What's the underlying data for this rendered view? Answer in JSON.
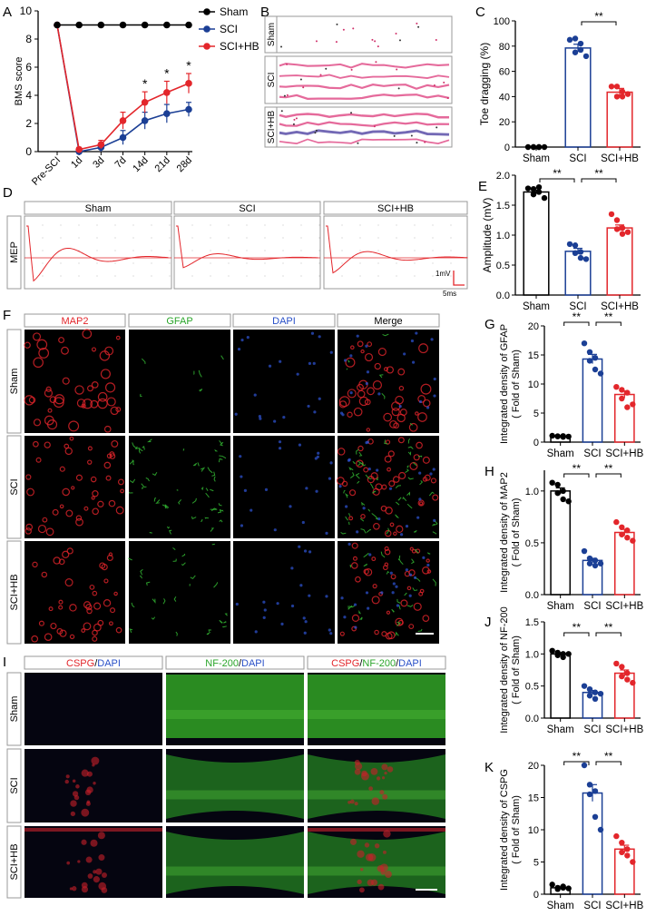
{
  "colors": {
    "sham": "#000000",
    "sci": "#1b3f95",
    "scihb": "#e3262b",
    "green": "#3cc93c",
    "blue": "#3a62d8"
  },
  "groups": [
    "Sham",
    "SCI",
    "SCI+HB"
  ],
  "panels": {
    "A": {
      "letter": "A"
    },
    "B": {
      "letter": "B"
    },
    "C": {
      "letter": "C"
    },
    "D": {
      "letter": "D"
    },
    "E": {
      "letter": "E"
    },
    "F": {
      "letter": "F"
    },
    "G": {
      "letter": "G"
    },
    "H": {
      "letter": "H"
    },
    "I": {
      "letter": "I"
    },
    "J": {
      "letter": "J"
    },
    "K": {
      "letter": "K"
    }
  },
  "panel_B": {
    "rows": [
      "Sham",
      "SCI",
      "SCI+HB"
    ]
  },
  "panel_D": {
    "side_label": "MEP",
    "columns": [
      "Sham",
      "SCI",
      "SCI+HB"
    ],
    "scale_mv": "1mV",
    "scale_ms": "5ms"
  },
  "panel_F": {
    "columns": [
      "MAP2",
      "GFAP",
      "DAPI",
      "Merge"
    ],
    "rows": [
      "Sham",
      "SCI",
      "SCI+HB"
    ]
  },
  "panel_I": {
    "columns": [
      [
        {
          "t": "CSPG",
          "c": "red"
        },
        {
          "t": "/",
          "c": "black"
        },
        {
          "t": "DAPI",
          "c": "blue"
        }
      ],
      [
        {
          "t": "NF-200",
          "c": "green"
        },
        {
          "t": "/",
          "c": "black"
        },
        {
          "t": "DAPI",
          "c": "blue"
        }
      ],
      [
        {
          "t": "CSPG",
          "c": "red"
        },
        {
          "t": "/",
          "c": "black"
        },
        {
          "t": "NF-200",
          "c": "green"
        },
        {
          "t": "/",
          "c": "black"
        },
        {
          "t": "DAPI",
          "c": "blue"
        }
      ]
    ],
    "rows": [
      "Sham",
      "SCI",
      "SCI+HB"
    ]
  },
  "chart_data": [
    {
      "panel": "A",
      "type": "line",
      "ylabel": "BMS score",
      "ylim": [
        0,
        10
      ],
      "yticks": [
        0,
        2,
        4,
        6,
        8,
        10
      ],
      "categories": [
        "Pre-SCI",
        "1d",
        "3d",
        "7d",
        "14d",
        "21d",
        "28d"
      ],
      "legend": "top-right",
      "series": [
        {
          "name": "Sham",
          "values": [
            9,
            9,
            9,
            9,
            9,
            9,
            9
          ],
          "error": [
            0,
            0,
            0,
            0,
            0,
            0,
            0
          ]
        },
        {
          "name": "SCI",
          "values": [
            9,
            0,
            0.3,
            1.0,
            2.2,
            2.7,
            3.0
          ],
          "error": [
            0,
            0.1,
            0.3,
            0.5,
            0.6,
            0.65,
            0.5
          ]
        },
        {
          "name": "SCI+HB",
          "values": [
            9,
            0.15,
            0.5,
            2.2,
            3.5,
            4.2,
            4.85
          ],
          "error": [
            0,
            0.15,
            0.3,
            0.6,
            0.75,
            0.8,
            0.7
          ]
        }
      ],
      "annotations": [
        {
          "category": "14d",
          "text": "*"
        },
        {
          "category": "21d",
          "text": "*"
        },
        {
          "category": "28d",
          "text": "*"
        }
      ]
    },
    {
      "panel": "C",
      "type": "bar",
      "ylabel": "Toe dragging (%)",
      "ylim": [
        0,
        100
      ],
      "yticks": [
        0,
        20,
        40,
        60,
        80,
        100
      ],
      "categories": [
        "Sham",
        "SCI",
        "SCI+HB"
      ],
      "values": [
        0,
        78.5,
        43.5
      ],
      "error": [
        0,
        3,
        3
      ],
      "points": [
        [
          0,
          0,
          0,
          0,
          0,
          0
        ],
        [
          85,
          86,
          82,
          75,
          77,
          72
        ],
        [
          48,
          48,
          44,
          40,
          40,
          42
        ]
      ],
      "significance": [
        {
          "from": 1,
          "to": 2,
          "text": "**"
        }
      ]
    },
    {
      "panel": "E",
      "type": "bar",
      "ylabel": "Amplitude (mV)",
      "ylim": [
        0,
        2.0
      ],
      "yticks": [
        0.0,
        0.5,
        1.0,
        1.5,
        2.0
      ],
      "categories": [
        "Sham",
        "SCI",
        "SCI+HB"
      ],
      "values": [
        1.72,
        0.73,
        1.12
      ],
      "error": [
        0.03,
        0.05,
        0.05
      ],
      "points": [
        [
          1.78,
          1.77,
          1.8,
          1.68,
          1.72,
          1.62
        ],
        [
          0.85,
          0.83,
          0.72,
          0.7,
          0.62,
          0.6
        ],
        [
          1.35,
          1.25,
          1.12,
          1.1,
          1.02,
          1.05
        ]
      ],
      "significance": [
        {
          "from": 0,
          "to": 1,
          "text": "**"
        },
        {
          "from": 1,
          "to": 2,
          "text": "**"
        }
      ]
    },
    {
      "panel": "G",
      "type": "bar",
      "ylabel": "Integrated density of GFAP",
      "ylabel2": "( Fold of Sham)",
      "ylim": [
        0,
        20
      ],
      "yticks": [
        0,
        5,
        10,
        15,
        20
      ],
      "categories": [
        "Sham",
        "SCI",
        "SCI+HB"
      ],
      "values": [
        1.0,
        14.3,
        8.2
      ],
      "error": [
        0.05,
        0.8,
        0.6
      ],
      "points": [
        [
          1.1,
          1.0,
          0.9,
          1.0,
          1.05,
          0.95
        ],
        [
          17,
          15.5,
          14.5,
          14,
          12.5,
          11.8
        ],
        [
          9.5,
          9,
          8.5,
          7.5,
          6,
          6.5
        ]
      ],
      "significance": [
        {
          "from": 0,
          "to": 1,
          "text": "**"
        },
        {
          "from": 1,
          "to": 2,
          "text": "**"
        }
      ]
    },
    {
      "panel": "H",
      "type": "bar",
      "ylabel": "Integrated density of MAP2",
      "ylabel2": "( Fold of Sham)",
      "ylim": [
        0,
        1.2
      ],
      "yticks": [
        0.0,
        0.5,
        1.0
      ],
      "categories": [
        "Sham",
        "SCI",
        "SCI+HB"
      ],
      "values": [
        1.0,
        0.33,
        0.6
      ],
      "error": [
        0.03,
        0.02,
        0.03
      ],
      "points": [
        [
          1.08,
          1.06,
          1.0,
          0.98,
          0.92,
          0.9
        ],
        [
          0.42,
          0.35,
          0.33,
          0.3,
          0.28,
          0.3
        ],
        [
          0.7,
          0.65,
          0.62,
          0.58,
          0.55,
          0.52
        ]
      ],
      "significance": [
        {
          "from": 0,
          "to": 1,
          "text": "**"
        },
        {
          "from": 1,
          "to": 2,
          "text": "**"
        }
      ]
    },
    {
      "panel": "J",
      "type": "bar",
      "ylabel": "Integrated density of NF-200",
      "ylabel2": "( Fold of Sham)",
      "ylim": [
        0,
        1.5
      ],
      "yticks": [
        0.0,
        0.5,
        1.0,
        1.5
      ],
      "categories": [
        "Sham",
        "SCI",
        "SCI+HB"
      ],
      "values": [
        1.0,
        0.4,
        0.7
      ],
      "error": [
        0.02,
        0.03,
        0.05
      ],
      "points": [
        [
          1.05,
          1.02,
          1.0,
          0.98,
          0.95,
          1.0
        ],
        [
          0.5,
          0.45,
          0.4,
          0.35,
          0.3,
          0.38
        ],
        [
          0.85,
          0.8,
          0.7,
          0.65,
          0.6,
          0.55
        ]
      ],
      "significance": [
        {
          "from": 0,
          "to": 1,
          "text": "**"
        },
        {
          "from": 1,
          "to": 2,
          "text": "**"
        }
      ]
    },
    {
      "panel": "K",
      "type": "bar",
      "ylabel": "Integrated density of CSPG",
      "ylabel2": "( Fold of Sham)",
      "ylim": [
        0,
        20
      ],
      "yticks": [
        0,
        5,
        10,
        15,
        20
      ],
      "categories": [
        "Sham",
        "SCI",
        "SCI+HB"
      ],
      "values": [
        1.0,
        15.7,
        7.0
      ],
      "error": [
        0.1,
        1.3,
        0.6
      ],
      "points": [
        [
          1.5,
          1.0,
          1.2,
          0.8,
          1.0,
          0.9
        ],
        [
          20,
          17,
          16,
          15.5,
          12,
          10
        ],
        [
          9,
          8,
          7,
          6.5,
          6,
          5
        ]
      ],
      "significance": [
        {
          "from": 0,
          "to": 1,
          "text": "**"
        },
        {
          "from": 1,
          "to": 2,
          "text": "**"
        }
      ]
    }
  ]
}
